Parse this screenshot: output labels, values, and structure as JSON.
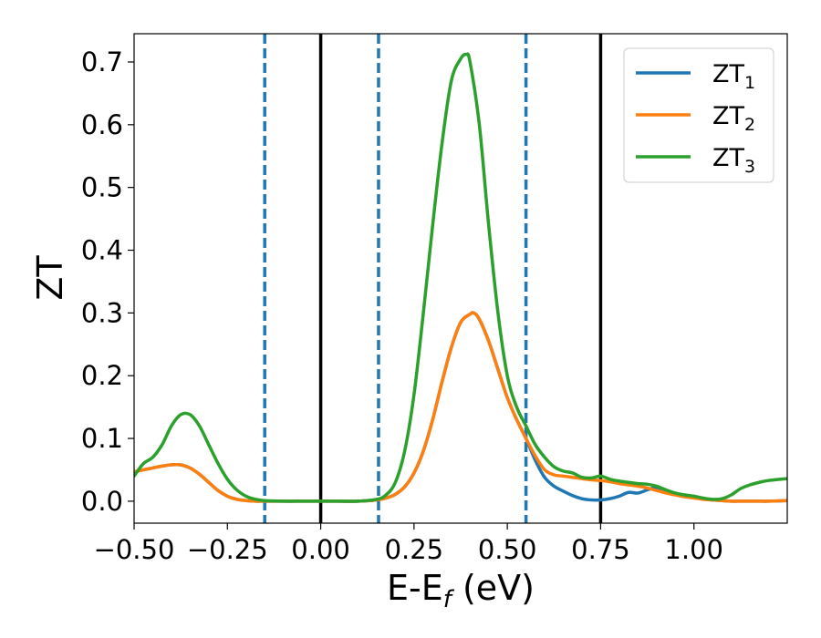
{
  "chart_data": {
    "type": "line",
    "xlabel": {
      "base": "E-E",
      "sub": "f",
      "unit": " (eV)"
    },
    "ylabel": "ZT",
    "xlim": [
      -0.5,
      1.25
    ],
    "ylim": [
      -0.035,
      0.745
    ],
    "x_ticks": [
      -0.5,
      -0.25,
      0.0,
      0.25,
      0.5,
      0.75,
      1.0
    ],
    "x_tick_labels": [
      "−0.50",
      "−0.25",
      "0.00",
      "0.25",
      "0.50",
      "0.75",
      "1.00"
    ],
    "y_ticks": [
      0.0,
      0.1,
      0.2,
      0.3,
      0.4,
      0.5,
      0.6,
      0.7
    ],
    "y_tick_labels": [
      "0.0",
      "0.1",
      "0.2",
      "0.3",
      "0.4",
      "0.5",
      "0.6",
      "0.7"
    ],
    "grid": false,
    "legend_position": "top-right",
    "colors": {
      "series1": "#1f77b4",
      "series2": "#ff7f0e",
      "series3": "#2ca02c",
      "vline_solid": "#000000",
      "vline_dashed": "#1f77b4"
    },
    "vlines_solid": [
      0.0,
      0.75
    ],
    "vlines_dashed": [
      -0.15,
      0.155,
      0.55
    ],
    "series": [
      {
        "name": "ZT",
        "sub": "1",
        "color": "#1f77b4",
        "x": [
          -0.5,
          -0.475,
          -0.45,
          -0.425,
          -0.4,
          -0.375,
          -0.35,
          -0.325,
          -0.3,
          -0.275,
          -0.25,
          -0.225,
          -0.2,
          -0.175,
          -0.15,
          -0.1,
          -0.05,
          0.0,
          0.05,
          0.1,
          0.15,
          0.175,
          0.2,
          0.225,
          0.25,
          0.275,
          0.3,
          0.325,
          0.35,
          0.375,
          0.4,
          0.41,
          0.425,
          0.45,
          0.475,
          0.5,
          0.525,
          0.55,
          0.575,
          0.6,
          0.625,
          0.65,
          0.675,
          0.7,
          0.725,
          0.75,
          0.775,
          0.8,
          0.825,
          0.85,
          0.875,
          0.9,
          0.925,
          0.95,
          0.975,
          1.0,
          1.025,
          1.05,
          1.075,
          1.1,
          1.125,
          1.15,
          1.175,
          1.2,
          1.25
        ],
        "y": [
          0.047,
          0.05,
          0.053,
          0.056,
          0.058,
          0.058,
          0.053,
          0.043,
          0.03,
          0.017,
          0.008,
          0.003,
          0.001,
          0.0,
          0.0,
          0.0,
          0.0,
          0.0,
          0.0,
          0.0,
          0.002,
          0.005,
          0.011,
          0.023,
          0.045,
          0.08,
          0.13,
          0.19,
          0.245,
          0.285,
          0.298,
          0.3,
          0.29,
          0.255,
          0.21,
          0.165,
          0.13,
          0.1,
          0.065,
          0.038,
          0.024,
          0.016,
          0.009,
          0.004,
          0.002,
          0.002,
          0.004,
          0.008,
          0.014,
          0.013,
          0.018,
          0.022,
          0.016,
          0.012,
          0.009,
          0.006,
          0.004,
          0.002,
          0.001,
          0.0,
          0.0,
          0.0,
          0.0,
          0.0,
          0.001
        ]
      },
      {
        "name": "ZT",
        "sub": "2",
        "color": "#ff7f0e",
        "x": [
          -0.5,
          -0.475,
          -0.45,
          -0.425,
          -0.4,
          -0.375,
          -0.35,
          -0.325,
          -0.3,
          -0.275,
          -0.25,
          -0.225,
          -0.2,
          -0.175,
          -0.15,
          -0.1,
          -0.05,
          0.0,
          0.05,
          0.1,
          0.15,
          0.175,
          0.2,
          0.225,
          0.25,
          0.275,
          0.3,
          0.325,
          0.35,
          0.375,
          0.4,
          0.41,
          0.425,
          0.45,
          0.475,
          0.5,
          0.525,
          0.55,
          0.575,
          0.6,
          0.625,
          0.65,
          0.675,
          0.7,
          0.725,
          0.75,
          0.775,
          0.8,
          0.825,
          0.85,
          0.875,
          0.9,
          0.925,
          0.95,
          0.975,
          1.0,
          1.025,
          1.05,
          1.075,
          1.1,
          1.125,
          1.15,
          1.175,
          1.2,
          1.25
        ],
        "y": [
          0.047,
          0.05,
          0.053,
          0.056,
          0.058,
          0.058,
          0.053,
          0.043,
          0.03,
          0.017,
          0.008,
          0.003,
          0.001,
          0.0,
          0.0,
          0.0,
          0.0,
          0.0,
          0.0,
          0.0,
          0.002,
          0.005,
          0.011,
          0.023,
          0.045,
          0.08,
          0.13,
          0.19,
          0.245,
          0.285,
          0.298,
          0.3,
          0.29,
          0.255,
          0.21,
          0.165,
          0.13,
          0.1,
          0.072,
          0.05,
          0.042,
          0.04,
          0.038,
          0.036,
          0.034,
          0.033,
          0.031,
          0.028,
          0.026,
          0.024,
          0.021,
          0.017,
          0.013,
          0.01,
          0.007,
          0.005,
          0.003,
          0.002,
          0.001,
          0.0,
          0.0,
          0.0,
          0.0,
          0.0,
          0.001
        ]
      },
      {
        "name": "ZT",
        "sub": "3",
        "color": "#2ca02c",
        "x": [
          -0.5,
          -0.475,
          -0.45,
          -0.425,
          -0.4,
          -0.375,
          -0.35,
          -0.325,
          -0.3,
          -0.275,
          -0.25,
          -0.225,
          -0.2,
          -0.175,
          -0.15,
          -0.1,
          -0.05,
          0.0,
          0.05,
          0.1,
          0.15,
          0.175,
          0.2,
          0.225,
          0.25,
          0.275,
          0.3,
          0.325,
          0.35,
          0.375,
          0.39,
          0.4,
          0.425,
          0.45,
          0.475,
          0.5,
          0.525,
          0.55,
          0.575,
          0.6,
          0.625,
          0.65,
          0.675,
          0.7,
          0.725,
          0.75,
          0.775,
          0.8,
          0.825,
          0.85,
          0.875,
          0.9,
          0.925,
          0.95,
          0.975,
          1.0,
          1.025,
          1.05,
          1.075,
          1.1,
          1.125,
          1.15,
          1.175,
          1.2,
          1.25
        ],
        "y": [
          0.04,
          0.06,
          0.07,
          0.09,
          0.12,
          0.138,
          0.138,
          0.12,
          0.09,
          0.06,
          0.035,
          0.018,
          0.008,
          0.003,
          0.001,
          0.0,
          0.0,
          0.0,
          0.0,
          0.0,
          0.003,
          0.01,
          0.03,
          0.08,
          0.17,
          0.3,
          0.44,
          0.57,
          0.67,
          0.705,
          0.712,
          0.7,
          0.6,
          0.44,
          0.3,
          0.2,
          0.15,
          0.12,
          0.09,
          0.07,
          0.055,
          0.048,
          0.045,
          0.038,
          0.037,
          0.04,
          0.035,
          0.032,
          0.03,
          0.028,
          0.027,
          0.024,
          0.018,
          0.013,
          0.01,
          0.008,
          0.005,
          0.003,
          0.004,
          0.01,
          0.02,
          0.026,
          0.03,
          0.033,
          0.036
        ]
      }
    ]
  }
}
